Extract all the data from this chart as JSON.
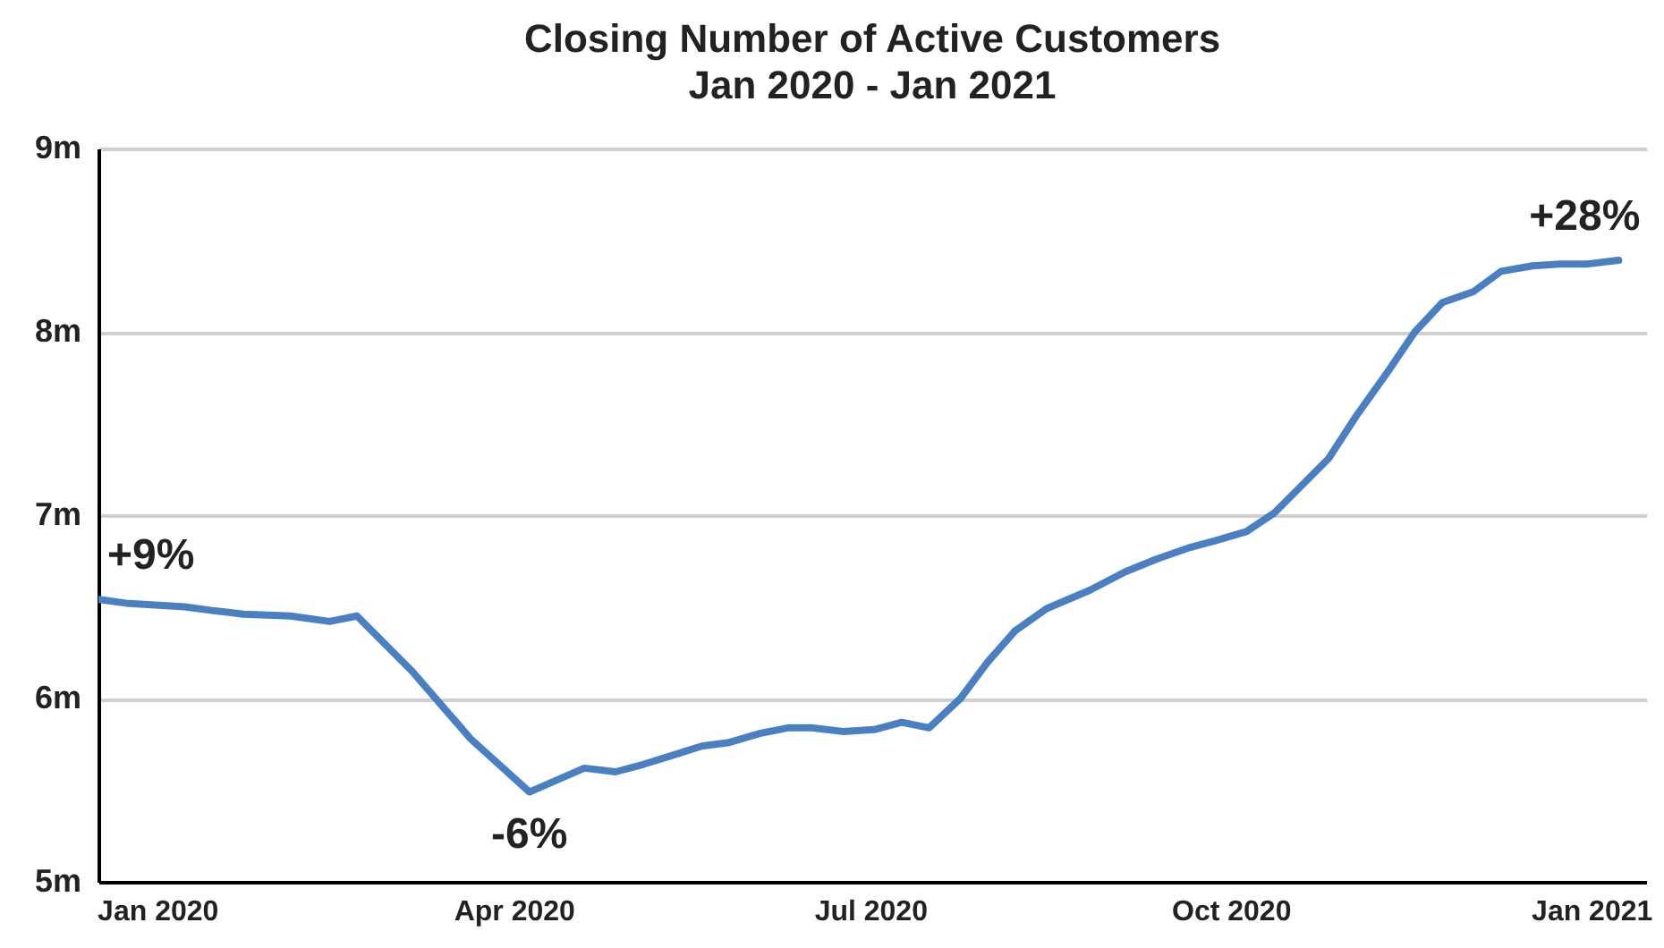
{
  "chart_data": {
    "type": "line",
    "title": "Closing Number of Active Customers",
    "subtitle": "Jan 2020 - Jan 2021",
    "x": [
      "2019-12-17",
      "2019-12-24",
      "2020-01-08",
      "2020-01-15",
      "2020-01-23",
      "2020-02-04",
      "2020-02-14",
      "2020-02-21",
      "2020-03-06",
      "2020-03-21",
      "2020-04-05",
      "2020-04-19",
      "2020-04-27",
      "2020-05-04",
      "2020-05-19",
      "2020-05-26",
      "2020-06-03",
      "2020-06-10",
      "2020-06-16",
      "2020-06-24",
      "2020-07-02",
      "2020-07-09",
      "2020-07-16",
      "2020-07-24",
      "2020-07-31",
      "2020-08-07",
      "2020-08-15",
      "2020-08-26",
      "2020-09-04",
      "2020-09-12",
      "2020-09-20",
      "2020-09-27",
      "2020-10-05",
      "2020-10-12",
      "2020-10-19",
      "2020-10-26",
      "2020-11-02",
      "2020-11-10",
      "2020-11-17",
      "2020-11-24",
      "2020-12-02",
      "2020-12-09",
      "2020-12-17",
      "2020-12-24",
      "2020-12-31",
      "2021-01-08"
    ],
    "series": [
      {
        "color": "#4a7fc1",
        "values": [
          6.54,
          6.52,
          6.5,
          6.48,
          6.46,
          6.45,
          6.42,
          6.45,
          6.15,
          5.78,
          5.49,
          5.62,
          5.6,
          5.64,
          5.74,
          5.76,
          5.81,
          5.84,
          5.84,
          5.82,
          5.83,
          5.87,
          5.84,
          6.0,
          6.2,
          6.37,
          6.49,
          6.59,
          6.69,
          6.76,
          6.82,
          6.86,
          6.91,
          7.01,
          7.16,
          7.31,
          7.54,
          7.78,
          8.0,
          8.16,
          8.22,
          8.33,
          8.36,
          8.37,
          8.37,
          8.39
        ]
      }
    ],
    "xlim": [
      "2019-12-17",
      "2021-01-15"
    ],
    "xticks": [
      {
        "value": "2020-01-01",
        "label": "Jan 2020"
      },
      {
        "value": "2020-04-01",
        "label": "Apr 2020"
      },
      {
        "value": "2020-07-01",
        "label": "Jul 2020"
      },
      {
        "value": "2020-10-01",
        "label": "Oct 2020"
      },
      {
        "value": "2021-01-01",
        "label": "Jan 2021"
      }
    ],
    "ylim": [
      5,
      9
    ],
    "yticks": [
      {
        "value": 5,
        "label": "5m"
      },
      {
        "value": 6,
        "label": "6m"
      },
      {
        "value": 7,
        "label": "7m"
      },
      {
        "value": 8,
        "label": "8m"
      },
      {
        "value": 9,
        "label": "9m"
      }
    ],
    "grid": "y",
    "marker": "none",
    "line_style": "solid",
    "annotations": [
      {
        "text": "+9%",
        "x": "2019-12-17",
        "y": 6.54
      },
      {
        "text": "-6%",
        "x": "2020-04-05",
        "y": 5.49
      },
      {
        "text": "+28%",
        "x": "2021-01-08",
        "y": 8.39
      }
    ]
  }
}
